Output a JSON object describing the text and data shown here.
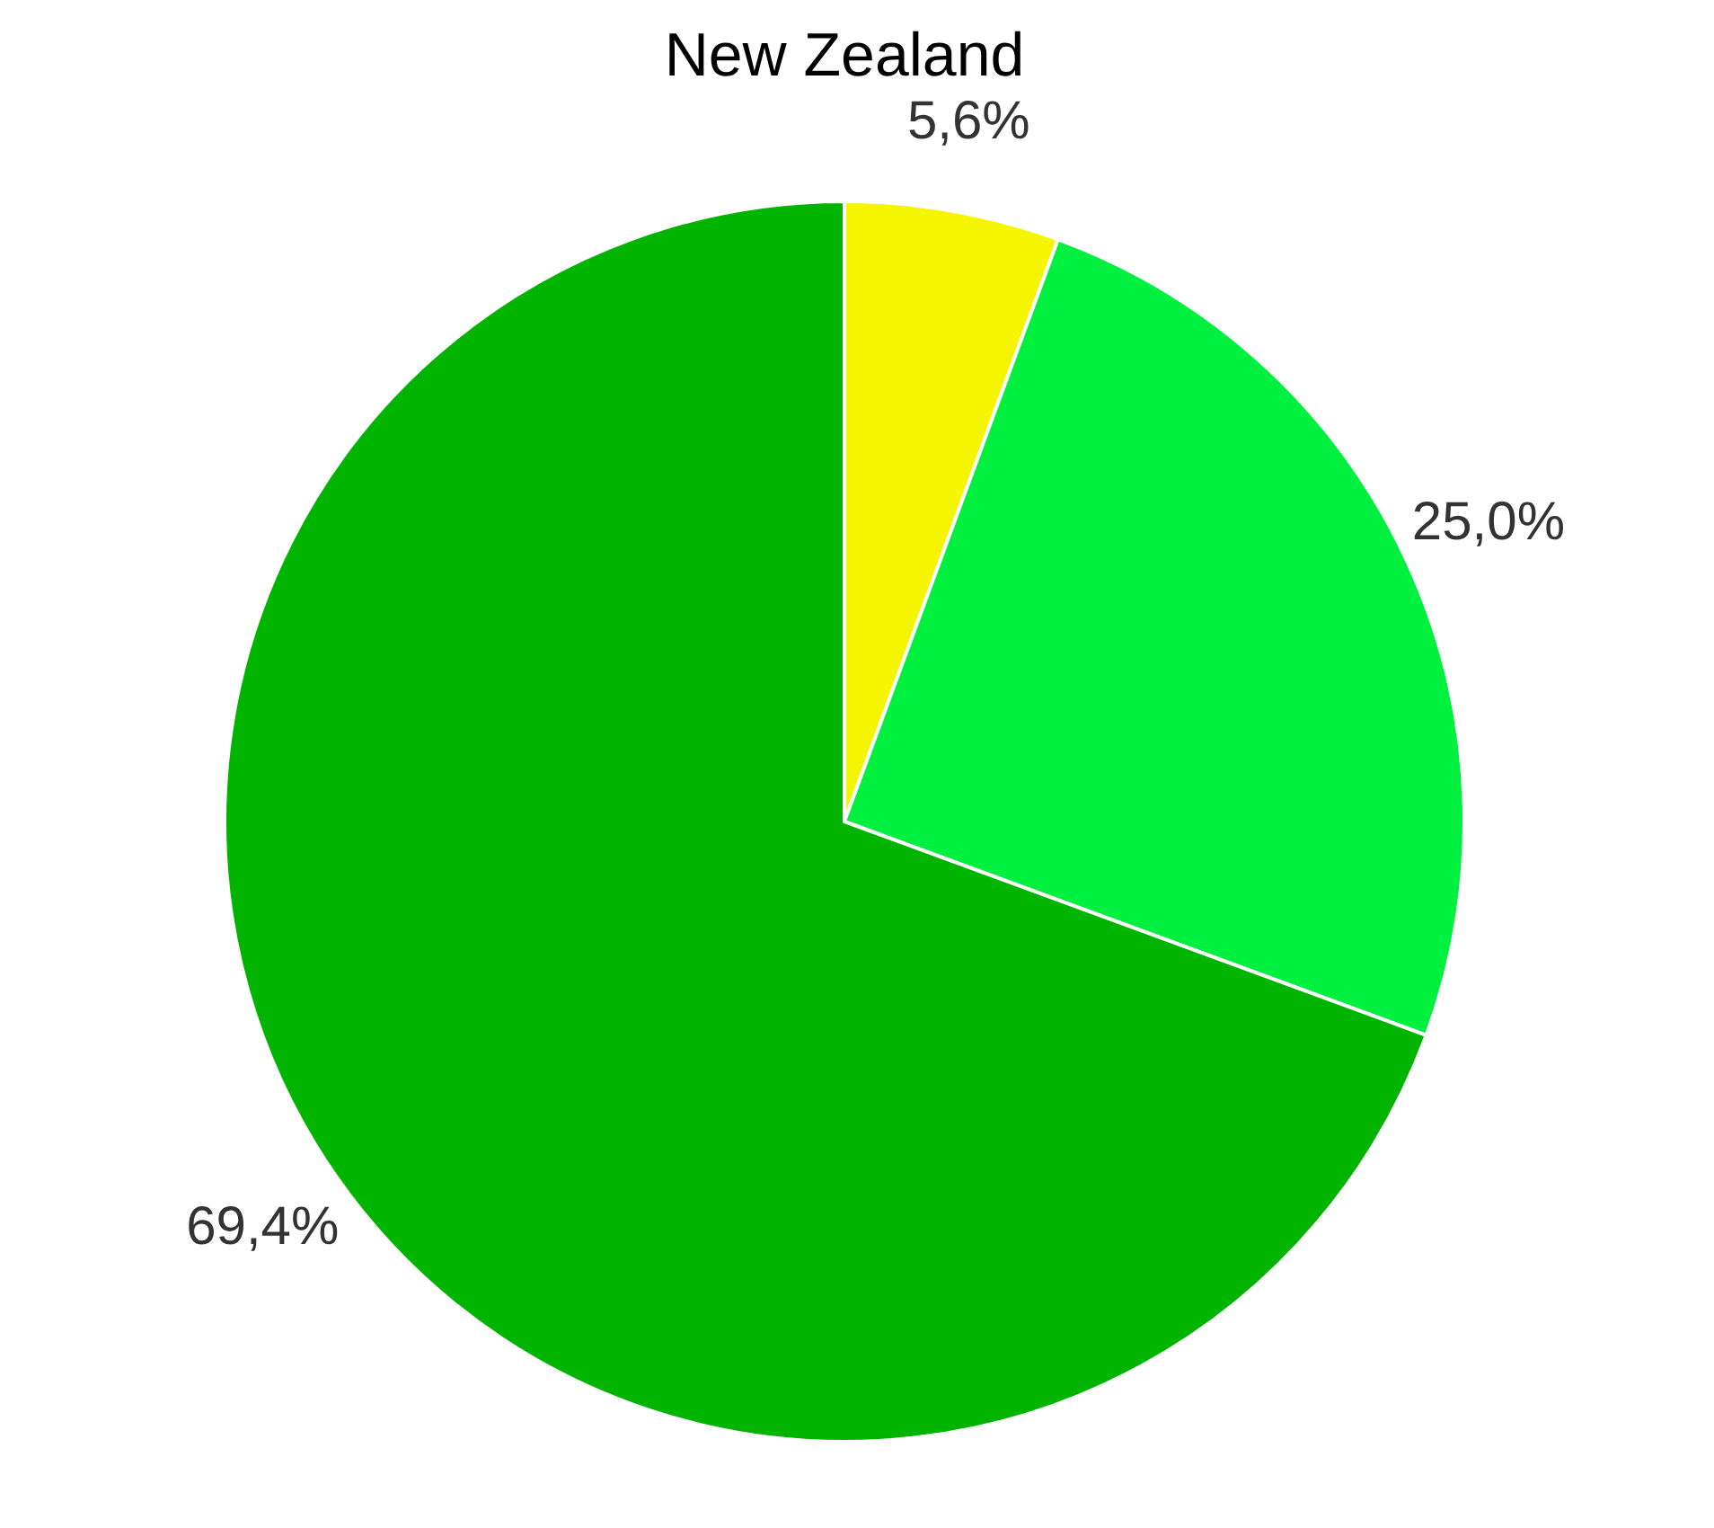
{
  "chart_data": {
    "type": "pie",
    "title": "New Zealand",
    "categories": [
      null,
      null,
      null
    ],
    "values": [
      5.6,
      25.0,
      69.4
    ],
    "value_labels": [
      "5,6%",
      "25,0%",
      "69,4%"
    ],
    "colors": [
      "#f5f500",
      "#00f040",
      "#00b400"
    ]
  }
}
